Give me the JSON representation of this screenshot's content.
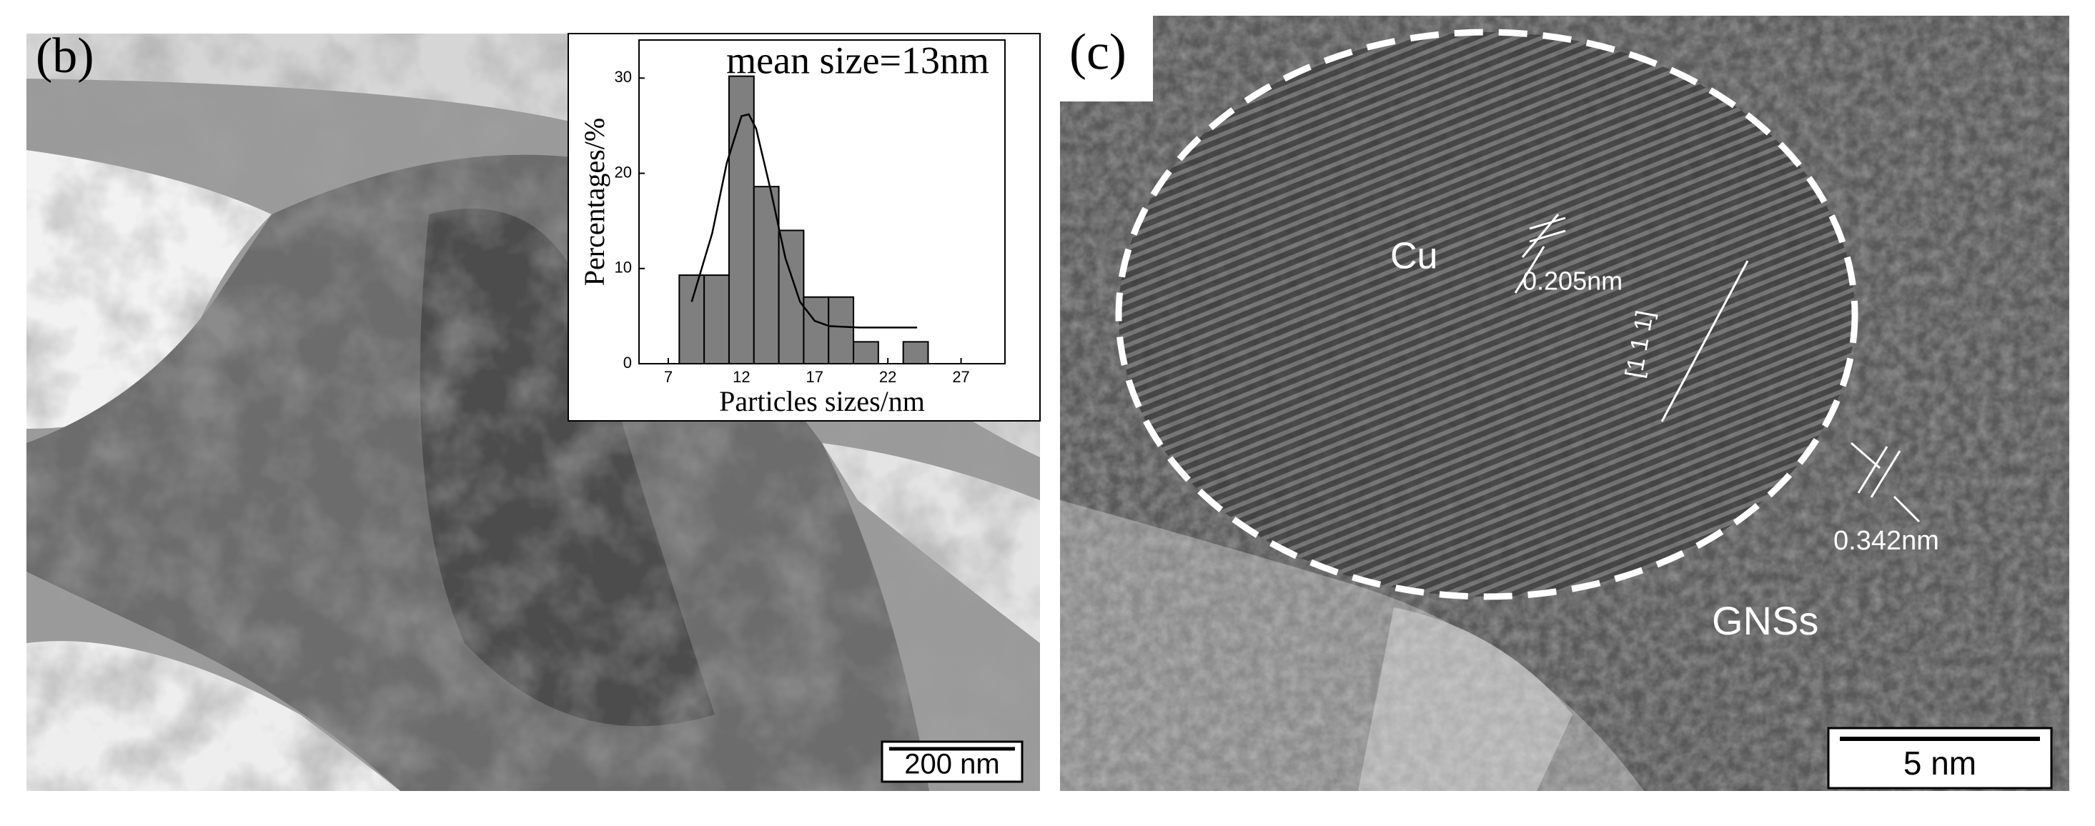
{
  "panels": {
    "b": {
      "label": "(b)",
      "scale_bar": "200 nm"
    },
    "c": {
      "label": "(c)",
      "scale_bar": "5 nm",
      "phase": "Cu",
      "spacing_cu": "0.205nm",
      "direction": "[1 1 1]",
      "spacing_gns": "0.342nm",
      "region": "GNSs"
    }
  },
  "chart_data": {
    "type": "bar",
    "annotation": "mean size=13nm",
    "xlabel": "Particles sizes/nm",
    "ylabel": "Percentages/%",
    "x": [
      8.6,
      10.3,
      12,
      13.7,
      15.4,
      17.1,
      18.8,
      20.5,
      23.9
    ],
    "values": [
      9.3,
      9.3,
      30.2,
      18.6,
      14,
      7,
      7,
      2.3,
      2.3
    ],
    "color": "#7f7f7f",
    "fit": {
      "x": [
        8.6,
        10,
        11,
        12,
        12.5,
        13,
        14,
        15,
        16,
        17,
        18,
        20,
        24
      ],
      "values": [
        6.5,
        13.7,
        21.1,
        26,
        26.2,
        24.7,
        18.2,
        11.1,
        6.5,
        4.5,
        3.95,
        3.8,
        3.8
      ]
    },
    "xlim": [
      5,
      30
    ],
    "ylim": [
      0,
      34
    ],
    "xticks": [
      7,
      12,
      17,
      22,
      27
    ],
    "yticks": [
      0,
      10,
      20,
      30
    ]
  }
}
